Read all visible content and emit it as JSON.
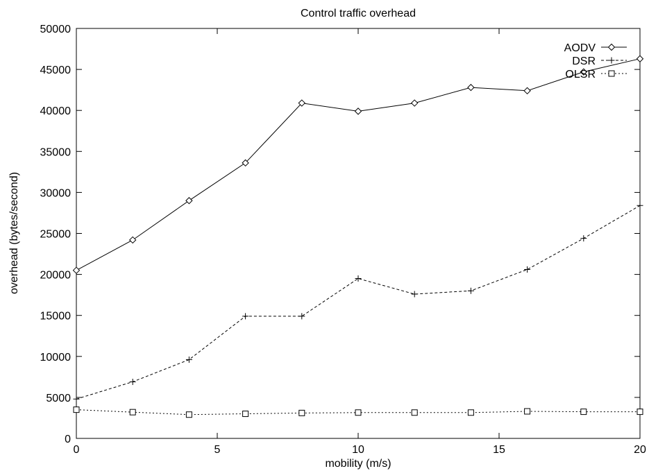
{
  "chart_data": {
    "type": "line",
    "title": "Control traffic overhead",
    "xlabel": "mobility (m/s)",
    "ylabel": "overhead (bytes/second)",
    "xlim": [
      0,
      20
    ],
    "ylim": [
      0,
      50000
    ],
    "x_ticks": [
      0,
      5,
      10,
      15,
      20
    ],
    "y_ticks": [
      0,
      5000,
      10000,
      15000,
      20000,
      25000,
      30000,
      35000,
      40000,
      45000,
      50000
    ],
    "grid": false,
    "legend_position": "top-right",
    "x": [
      0,
      2,
      4,
      6,
      8,
      10,
      12,
      14,
      16,
      18,
      20
    ],
    "series": [
      {
        "name": "AODV",
        "marker": "diamond",
        "line_style": "solid",
        "values": [
          20500,
          24200,
          29000,
          33600,
          40900,
          39900,
          40900,
          42800,
          42400,
          44700,
          46300
        ]
      },
      {
        "name": "DSR",
        "marker": "plus",
        "line_style": "dashed",
        "values": [
          4800,
          6900,
          9600,
          14900,
          14900,
          19500,
          17600,
          18000,
          20600,
          24400,
          28400
        ]
      },
      {
        "name": "OLSR",
        "marker": "square",
        "line_style": "dotted",
        "values": [
          3500,
          3200,
          2900,
          3000,
          3100,
          3150,
          3150,
          3150,
          3300,
          3250,
          3250
        ]
      }
    ]
  }
}
